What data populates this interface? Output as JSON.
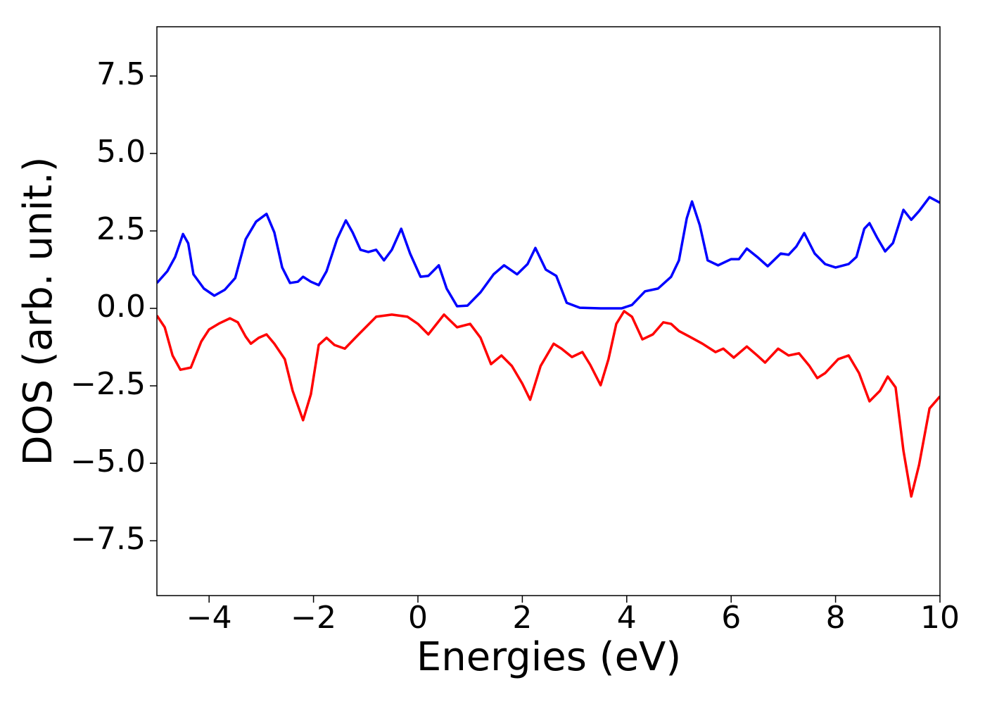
{
  "chart_data": {
    "type": "line",
    "xlabel": "Energies (eV)",
    "ylabel": "DOS (arb. unit.)",
    "xlim": [
      -5,
      10
    ],
    "ylim": [
      -9.27,
      9.09
    ],
    "xticks": [
      {
        "value": -4,
        "label": "−4"
      },
      {
        "value": -2,
        "label": "−2"
      },
      0,
      2,
      4,
      6,
      8,
      10
    ],
    "yticks": [
      {
        "value": -7.5,
        "label": "−7.5"
      },
      {
        "value": -5,
        "label": "−5.0"
      },
      {
        "value": -2.5,
        "label": "−2.5"
      },
      {
        "value": 0,
        "label": "0.0"
      },
      2.5,
      {
        "value": 5,
        "label": "5.0"
      },
      7.5
    ],
    "grid": false,
    "series": [
      {
        "color": "#0000ff",
        "x": [
          -5,
          -4.8,
          -4.65,
          -4.5,
          -4.4,
          -4.3,
          -4.1,
          -3.9,
          -3.7,
          -3.5,
          -3.3,
          -3.1,
          -2.9,
          -2.75,
          -2.6,
          -2.45,
          -2.3,
          -2.2,
          -2.05,
          -1.9,
          -1.75,
          -1.55,
          -1.38,
          -1.25,
          -1.1,
          -0.95,
          -0.8,
          -0.65,
          -0.5,
          -0.32,
          -0.15,
          0.05,
          0.2,
          0.4,
          0.55,
          0.75,
          0.95,
          1.2,
          1.45,
          1.65,
          1.9,
          2.1,
          2.25,
          2.45,
          2.65,
          2.85,
          3.1,
          3.5,
          3.9,
          4.1,
          4.35,
          4.6,
          4.85,
          5.0,
          5.15,
          5.25,
          5.4,
          5.55,
          5.75,
          6.0,
          6.15,
          6.3,
          6.5,
          6.7,
          6.95,
          7.1,
          7.25,
          7.4,
          7.6,
          7.8,
          8.0,
          8.25,
          8.4,
          8.55,
          8.65,
          8.8,
          8.95,
          9.1,
          9.3,
          9.45,
          9.6,
          9.8,
          10.0
        ],
        "values": [
          0.82,
          1.2,
          1.66,
          2.4,
          2.1,
          1.1,
          0.64,
          0.41,
          0.6,
          0.98,
          2.23,
          2.8,
          3.05,
          2.45,
          1.32,
          0.82,
          0.86,
          1.02,
          0.86,
          0.75,
          1.2,
          2.23,
          2.84,
          2.45,
          1.89,
          1.82,
          1.89,
          1.55,
          1.89,
          2.57,
          1.77,
          1.02,
          1.05,
          1.39,
          0.64,
          0.07,
          0.09,
          0.52,
          1.1,
          1.39,
          1.1,
          1.43,
          1.95,
          1.25,
          1.05,
          0.18,
          0.02,
          0,
          0,
          0.11,
          0.55,
          0.64,
          1.02,
          1.55,
          2.91,
          3.45,
          2.68,
          1.55,
          1.39,
          1.59,
          1.59,
          1.93,
          1.66,
          1.36,
          1.77,
          1.73,
          2.0,
          2.43,
          1.77,
          1.43,
          1.32,
          1.43,
          1.66,
          2.57,
          2.75,
          2.27,
          1.84,
          2.11,
          3.18,
          2.86,
          3.14,
          3.59,
          3.41
        ]
      },
      {
        "color": "#ff0000",
        "x": [
          -5,
          -4.85,
          -4.7,
          -4.55,
          -4.35,
          -4.15,
          -4.0,
          -3.8,
          -3.6,
          -3.45,
          -3.3,
          -3.2,
          -3.05,
          -2.9,
          -2.75,
          -2.55,
          -2.4,
          -2.2,
          -2.05,
          -1.9,
          -1.75,
          -1.6,
          -1.4,
          -1.2,
          -1.0,
          -0.8,
          -0.5,
          -0.2,
          0.0,
          0.2,
          0.5,
          0.75,
          1.0,
          1.2,
          1.4,
          1.6,
          1.8,
          2.0,
          2.15,
          2.35,
          2.6,
          2.75,
          2.95,
          3.15,
          3.3,
          3.5,
          3.65,
          3.8,
          3.95,
          4.1,
          4.3,
          4.5,
          4.7,
          4.85,
          5.0,
          5.2,
          5.45,
          5.7,
          5.85,
          6.05,
          6.3,
          6.5,
          6.65,
          6.9,
          7.1,
          7.3,
          7.5,
          7.65,
          7.8,
          8.05,
          8.25,
          8.45,
          8.65,
          8.85,
          9.0,
          9.15,
          9.3,
          9.45,
          9.6,
          9.8,
          10.0
        ],
        "values": [
          -0.23,
          -0.61,
          -1.52,
          -1.98,
          -1.91,
          -1.07,
          -0.68,
          -0.48,
          -0.32,
          -0.45,
          -0.91,
          -1.14,
          -0.95,
          -0.84,
          -1.14,
          -1.64,
          -2.66,
          -3.61,
          -2.77,
          -1.18,
          -0.95,
          -1.18,
          -1.3,
          -0.95,
          -0.61,
          -0.27,
          -0.2,
          -0.27,
          -0.5,
          -0.84,
          -0.2,
          -0.61,
          -0.5,
          -0.95,
          -1.8,
          -1.52,
          -1.86,
          -2.43,
          -2.95,
          -1.86,
          -1.14,
          -1.3,
          -1.57,
          -1.41,
          -1.82,
          -2.48,
          -1.64,
          -0.5,
          -0.09,
          -0.27,
          -1.0,
          -0.84,
          -0.45,
          -0.5,
          -0.73,
          -0.91,
          -1.14,
          -1.41,
          -1.3,
          -1.59,
          -1.23,
          -1.52,
          -1.75,
          -1.3,
          -1.52,
          -1.45,
          -1.86,
          -2.25,
          -2.09,
          -1.64,
          -1.52,
          -2.09,
          -3.0,
          -2.66,
          -2.2,
          -2.55,
          -4.59,
          -6.07,
          -5.05,
          -3.23,
          -2.84
        ]
      }
    ]
  }
}
